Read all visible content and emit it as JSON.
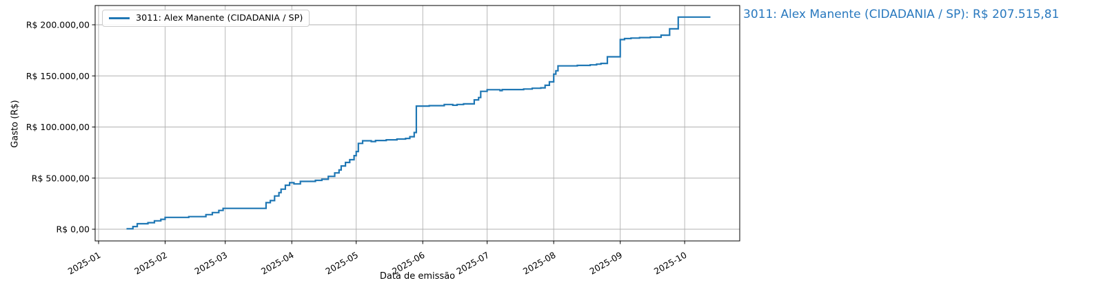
{
  "chart_data": {
    "type": "line",
    "style": "step-post cumulative",
    "title": "",
    "xlabel": "Data de emissão",
    "ylabel": "Gasto (R$)",
    "grid": true,
    "grid_color": "#b0b0b0",
    "line_color": "#1f77b4",
    "legend_position": "upper left",
    "annotation": "3011: Alex Manente (CIDADANIA / SP): R$ 207.515,81",
    "annotation_color": "#2878be",
    "xlim": [
      "2024-12-30",
      "2025-10-27"
    ],
    "ylim": [
      -11400,
      218900
    ],
    "x_ticks": [
      {
        "label": "2025-01",
        "date": "2025-01-01"
      },
      {
        "label": "2025-02",
        "date": "2025-02-01"
      },
      {
        "label": "2025-03",
        "date": "2025-03-01"
      },
      {
        "label": "2025-04",
        "date": "2025-04-01"
      },
      {
        "label": "2025-05",
        "date": "2025-05-01"
      },
      {
        "label": "2025-06",
        "date": "2025-06-01"
      },
      {
        "label": "2025-07",
        "date": "2025-07-01"
      },
      {
        "label": "2025-08",
        "date": "2025-08-01"
      },
      {
        "label": "2025-09",
        "date": "2025-09-01"
      },
      {
        "label": "2025-10",
        "date": "2025-10-01"
      }
    ],
    "y_ticks": [
      {
        "label": "R$ 0,00",
        "value": 0
      },
      {
        "label": "R$ 50.000,00",
        "value": 50000
      },
      {
        "label": "R$ 100.000,00",
        "value": 100000
      },
      {
        "label": "R$ 150.000,00",
        "value": 150000
      },
      {
        "label": "R$ 200.000,00",
        "value": 200000
      }
    ],
    "series": [
      {
        "name": "3011: Alex Manente (CIDADANIA / SP)",
        "final_value": 207515.81,
        "final_value_label": "R$ 207.515,81",
        "points": [
          [
            "2025-01-14",
            400
          ],
          [
            "2025-01-17",
            2600
          ],
          [
            "2025-01-19",
            5400
          ],
          [
            "2025-01-24",
            6400
          ],
          [
            "2025-01-27",
            8200
          ],
          [
            "2025-01-30",
            9700
          ],
          [
            "2025-02-01",
            11600
          ],
          [
            "2025-02-12",
            12300
          ],
          [
            "2025-02-20",
            14300
          ],
          [
            "2025-02-23",
            16300
          ],
          [
            "2025-02-26",
            18400
          ],
          [
            "2025-02-28",
            20400
          ],
          [
            "2025-03-20",
            26000
          ],
          [
            "2025-03-22",
            28000
          ],
          [
            "2025-03-24",
            32500
          ],
          [
            "2025-03-26",
            35800
          ],
          [
            "2025-03-27",
            39200
          ],
          [
            "2025-03-29",
            43000
          ],
          [
            "2025-03-31",
            45500
          ],
          [
            "2025-04-02",
            44300
          ],
          [
            "2025-04-05",
            46800
          ],
          [
            "2025-04-12",
            47800
          ],
          [
            "2025-04-15",
            48900
          ],
          [
            "2025-04-18",
            51700
          ],
          [
            "2025-04-21",
            55100
          ],
          [
            "2025-04-23",
            58000
          ],
          [
            "2025-04-24",
            61900
          ],
          [
            "2025-04-26",
            65300
          ],
          [
            "2025-04-28",
            68000
          ],
          [
            "2025-04-30",
            72000
          ],
          [
            "2025-05-01",
            76000
          ],
          [
            "2025-05-02",
            84000
          ],
          [
            "2025-05-04",
            86500
          ],
          [
            "2025-05-08",
            85800
          ],
          [
            "2025-05-10",
            86800
          ],
          [
            "2025-05-15",
            87500
          ],
          [
            "2025-05-20",
            88200
          ],
          [
            "2025-05-24",
            88800
          ],
          [
            "2025-05-26",
            90500
          ],
          [
            "2025-05-28",
            94600
          ],
          [
            "2025-05-29",
            120500
          ],
          [
            "2025-06-04",
            120900
          ],
          [
            "2025-06-11",
            122000
          ],
          [
            "2025-06-15",
            121300
          ],
          [
            "2025-06-17",
            122000
          ],
          [
            "2025-06-20",
            122600
          ],
          [
            "2025-06-25",
            126500
          ],
          [
            "2025-06-27",
            128800
          ],
          [
            "2025-06-28",
            134900
          ],
          [
            "2025-07-01",
            136500
          ],
          [
            "2025-07-07",
            135600
          ],
          [
            "2025-07-08",
            136600
          ],
          [
            "2025-07-18",
            137200
          ],
          [
            "2025-07-22",
            137900
          ],
          [
            "2025-07-26",
            138300
          ],
          [
            "2025-07-28",
            140800
          ],
          [
            "2025-07-30",
            144200
          ],
          [
            "2025-08-01",
            151700
          ],
          [
            "2025-08-02",
            155000
          ],
          [
            "2025-08-03",
            159800
          ],
          [
            "2025-08-12",
            160300
          ],
          [
            "2025-08-18",
            160800
          ],
          [
            "2025-08-21",
            161500
          ],
          [
            "2025-08-23",
            162200
          ],
          [
            "2025-08-26",
            168700
          ],
          [
            "2025-09-01",
            185500
          ],
          [
            "2025-09-03",
            186500
          ],
          [
            "2025-09-06",
            187000
          ],
          [
            "2025-09-10",
            187500
          ],
          [
            "2025-09-15",
            187900
          ],
          [
            "2025-09-20",
            189800
          ],
          [
            "2025-09-24",
            196000
          ],
          [
            "2025-09-28",
            207515.81
          ],
          [
            "2025-10-13",
            207515.81
          ]
        ]
      }
    ]
  },
  "axes": {
    "xlabel": "Data de emissão",
    "ylabel": "Gasto (R$)"
  }
}
